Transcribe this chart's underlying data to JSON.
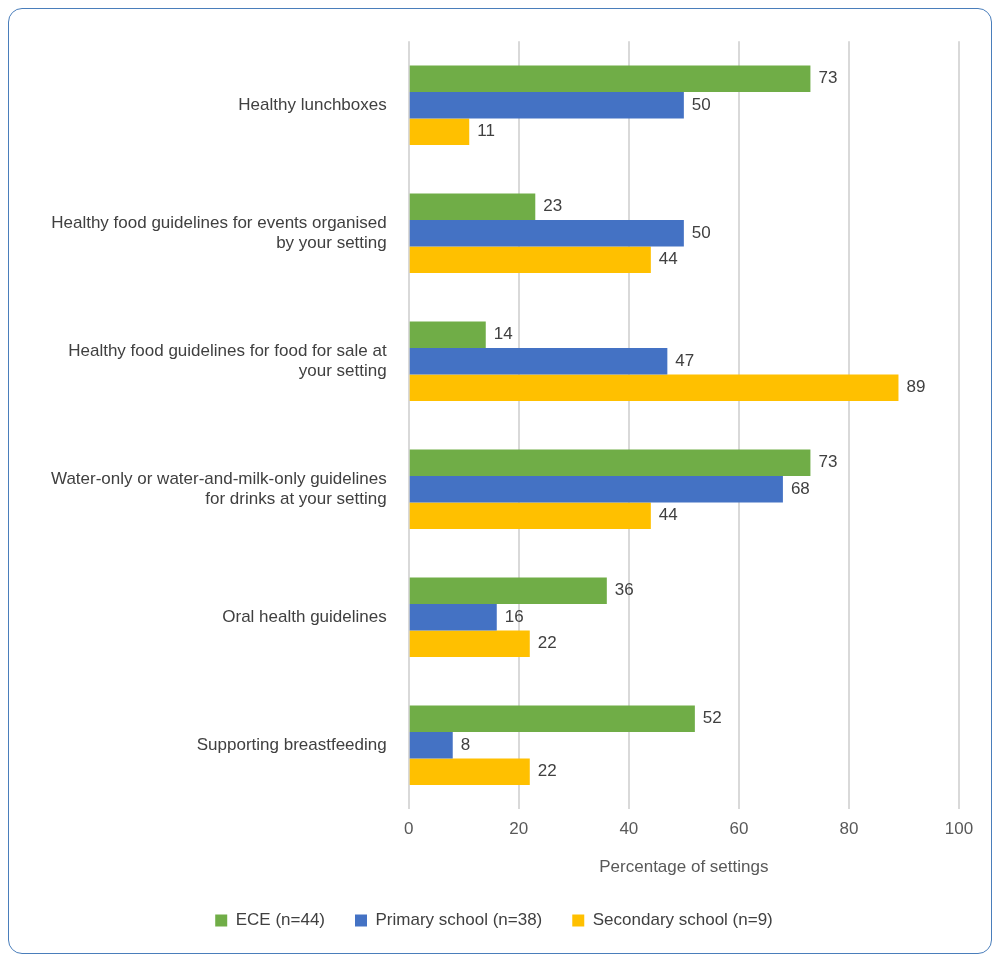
{
  "chart_data": {
    "type": "bar",
    "orientation": "horizontal",
    "xlabel": "Percentage of settings",
    "categories": [
      "Healthy lunchboxes",
      "Healthy food guidelines for events organised by your setting",
      "Healthy food guidelines for food for sale at your setting",
      "Water-only or water-and-milk-only guidelines for drinks at your setting",
      "Oral health guidelines",
      "Supporting breastfeeding"
    ],
    "series": [
      {
        "name": "ECE (n=44)",
        "color": "#70ad47",
        "values": [
          73,
          23,
          14,
          73,
          36,
          52
        ]
      },
      {
        "name": "Primary school (n=38)",
        "color": "#4472c4",
        "values": [
          50,
          50,
          47,
          68,
          16,
          8
        ]
      },
      {
        "name": "Secondary school (n=9)",
        "color": "#ffc000",
        "values": [
          11,
          44,
          89,
          44,
          22,
          22
        ]
      }
    ],
    "xlim": [
      0,
      100
    ],
    "xticks": [
      0,
      20,
      40,
      60,
      80,
      100
    ],
    "grid": "x",
    "legend": "bottom",
    "data_labels": true
  }
}
